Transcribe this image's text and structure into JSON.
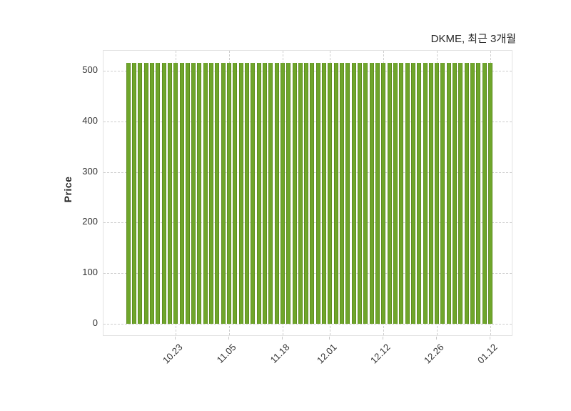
{
  "title": "DKME, 최근 3개월",
  "ylabel": "Price",
  "colors": {
    "bar_fill": "#6FA62B",
    "bar_edge": "#5E8D1F",
    "grid": "#cdcdcd",
    "spine": "#e2e2e2",
    "title_text": "#262626",
    "tick_text": "#333333",
    "background": "#ffffff"
  },
  "chart_data": {
    "type": "bar",
    "title": "DKME, 최근 3개월",
    "xlabel": "",
    "ylabel": "Price",
    "grid": true,
    "legend": "none",
    "y_ticks": [
      0,
      100,
      200,
      300,
      400,
      500
    ],
    "ylim": [
      -25,
      540
    ],
    "x_tick_labels": [
      "10.23",
      "11.05",
      "11.18",
      "12.01",
      "12.12",
      "12.26",
      "01.12"
    ],
    "x_tick_bar_indices": [
      8,
      17,
      26,
      34,
      43,
      52,
      61
    ],
    "values": [
      515,
      515,
      515,
      515,
      515,
      515,
      515,
      515,
      515,
      515,
      515,
      515,
      515,
      515,
      515,
      515,
      515,
      515,
      515,
      515,
      515,
      515,
      515,
      515,
      515,
      515,
      515,
      515,
      515,
      515,
      515,
      515,
      515,
      515,
      515,
      515,
      515,
      515,
      515,
      515,
      515,
      515,
      515,
      515,
      515,
      515,
      515,
      515,
      515,
      515,
      515,
      515,
      515,
      515,
      515,
      515,
      515,
      515,
      515,
      515,
      515,
      515
    ]
  }
}
